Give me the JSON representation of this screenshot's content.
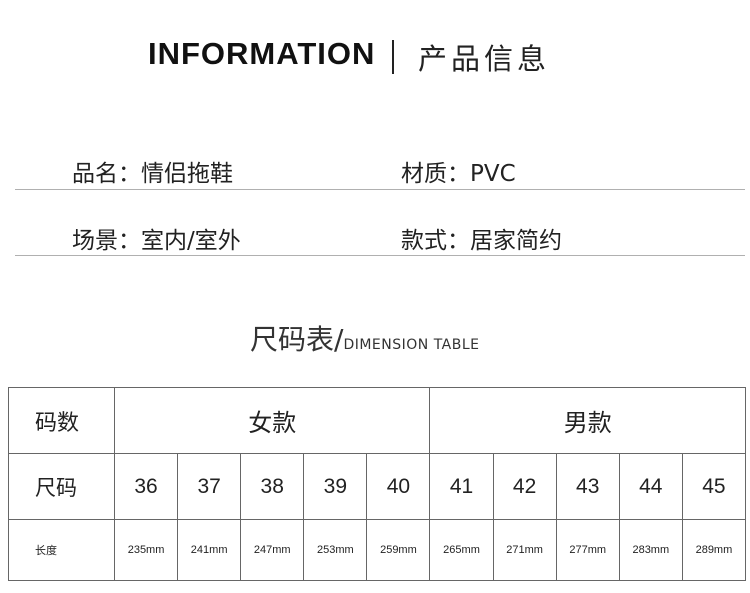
{
  "header": {
    "title_en": "INFORMATION",
    "title_cn": "产品信息"
  },
  "info": [
    {
      "label": "品名：",
      "value": "情侣拖鞋"
    },
    {
      "label": "材质：",
      "value": "PVC"
    },
    {
      "label": "场景：",
      "value": "室内/室外"
    },
    {
      "label": "款式：",
      "value": "居家简约"
    }
  ],
  "table_title": {
    "cn": "尺码表/",
    "en": "DIMENSION TABLE"
  },
  "table": {
    "row_labels": [
      "码数",
      "尺码",
      "长度"
    ],
    "groups": [
      "女款",
      "男款"
    ],
    "sizes": [
      "36",
      "37",
      "38",
      "39",
      "40",
      "41",
      "42",
      "43",
      "44",
      "45"
    ],
    "lengths": [
      "235mm",
      "241mm",
      "247mm",
      "253mm",
      "259mm",
      "265mm",
      "271mm",
      "277mm",
      "283mm",
      "289mm"
    ]
  }
}
